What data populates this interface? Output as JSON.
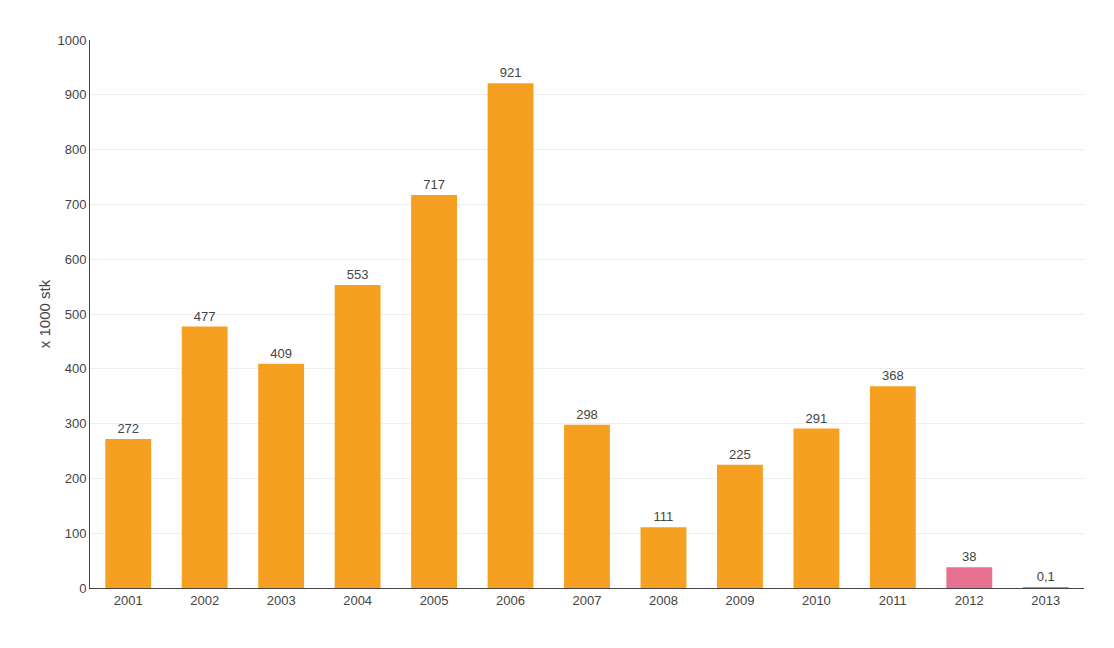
{
  "chart_data": {
    "type": "bar",
    "categories": [
      "2001",
      "2002",
      "2003",
      "2004",
      "2005",
      "2006",
      "2007",
      "2008",
      "2009",
      "2010",
      "2011",
      "2012",
      "2013"
    ],
    "values": [
      272,
      477,
      409,
      553,
      717,
      921,
      298,
      111,
      225,
      291,
      368,
      38,
      0.1
    ],
    "value_labels": [
      "272",
      "477",
      "409",
      "553",
      "717",
      "921",
      "298",
      "111",
      "225",
      "291",
      "368",
      "38",
      "0,1"
    ],
    "data_labels": true,
    "colors": [
      "#F5A020",
      "#F5A020",
      "#F5A020",
      "#F5A020",
      "#F5A020",
      "#F5A020",
      "#F5A020",
      "#F5A020",
      "#F5A020",
      "#F5A020",
      "#F5A020",
      "#E87090",
      "#E87090"
    ],
    "ylabel": "x 1000 stk",
    "ylim": [
      0,
      1000
    ],
    "yticks": [
      0,
      100,
      200,
      300,
      400,
      500,
      600,
      700,
      800,
      900,
      1000
    ],
    "grid": true
  }
}
